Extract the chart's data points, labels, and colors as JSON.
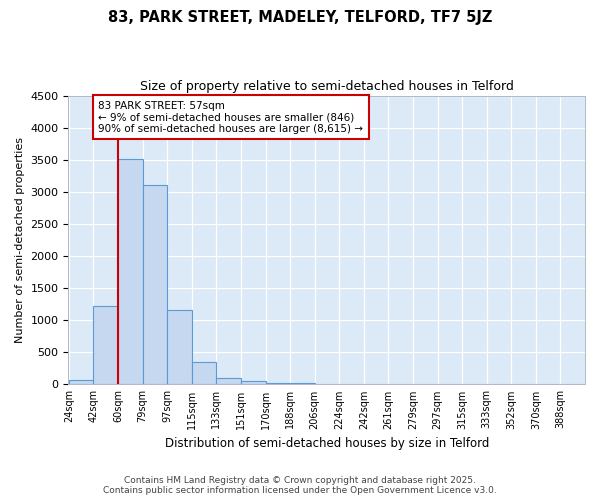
{
  "title": "83, PARK STREET, MADELEY, TELFORD, TF7 5JZ",
  "subtitle": "Size of property relative to semi-detached houses in Telford",
  "xlabel": "Distribution of semi-detached houses by size in Telford",
  "ylabel": "Number of semi-detached properties",
  "bin_labels": [
    "24sqm",
    "42sqm",
    "60sqm",
    "79sqm",
    "97sqm",
    "115sqm",
    "133sqm",
    "151sqm",
    "170sqm",
    "188sqm",
    "206sqm",
    "224sqm",
    "242sqm",
    "261sqm",
    "279sqm",
    "297sqm",
    "315sqm",
    "333sqm",
    "352sqm",
    "370sqm",
    "388sqm"
  ],
  "bar_values": [
    75,
    1220,
    3510,
    3110,
    1160,
    350,
    100,
    50,
    25,
    15,
    5,
    0,
    0,
    0,
    0,
    0,
    0,
    0,
    0,
    0,
    0
  ],
  "bar_color": "#c5d8f0",
  "bar_edge_color": "#5b9bd5",
  "fig_background_color": "#ffffff",
  "plot_background_color": "#dce9f7",
  "grid_color": "#ffffff",
  "vline_color": "#cc0000",
  "vline_x_bin": 1.5,
  "annotation_text": "83 PARK STREET: 57sqm\n← 9% of semi-detached houses are smaller (846)\n90% of semi-detached houses are larger (8,615) →",
  "annotation_box_facecolor": "#ffffff",
  "annotation_box_edgecolor": "#cc0000",
  "footer_text": "Contains HM Land Registry data © Crown copyright and database right 2025.\nContains public sector information licensed under the Open Government Licence v3.0.",
  "ylim": [
    0,
    4500
  ],
  "n_bins": 21
}
